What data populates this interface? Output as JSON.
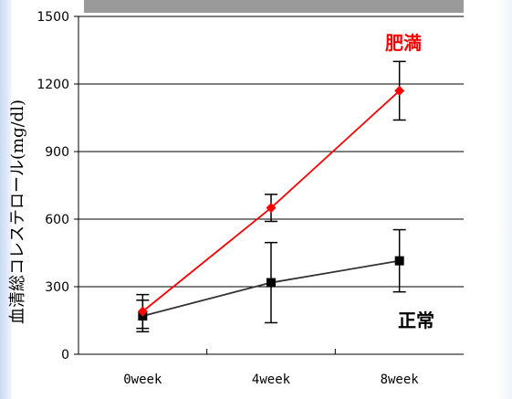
{
  "chart_data": {
    "type": "line",
    "title": "",
    "xlabel": "",
    "ylabel": "血清総コレステロール(mg/dl)",
    "categories": [
      "0week",
      "4week",
      "8week"
    ],
    "ylim": [
      0,
      1500
    ],
    "yticks": [
      "0",
      "300",
      "600",
      "900",
      "1200",
      "1500"
    ],
    "grid": true,
    "series": [
      {
        "name": "肥満",
        "color": "#ff0000",
        "marker": "diamond",
        "values": [
          190,
          650,
          1170
        ],
        "errors": [
          75,
          60,
          130
        ]
      },
      {
        "name": "正常",
        "color": "#333333",
        "marker": "square",
        "values": [
          170,
          318,
          415
        ],
        "errors": [
          70,
          178,
          138
        ]
      }
    ]
  }
}
